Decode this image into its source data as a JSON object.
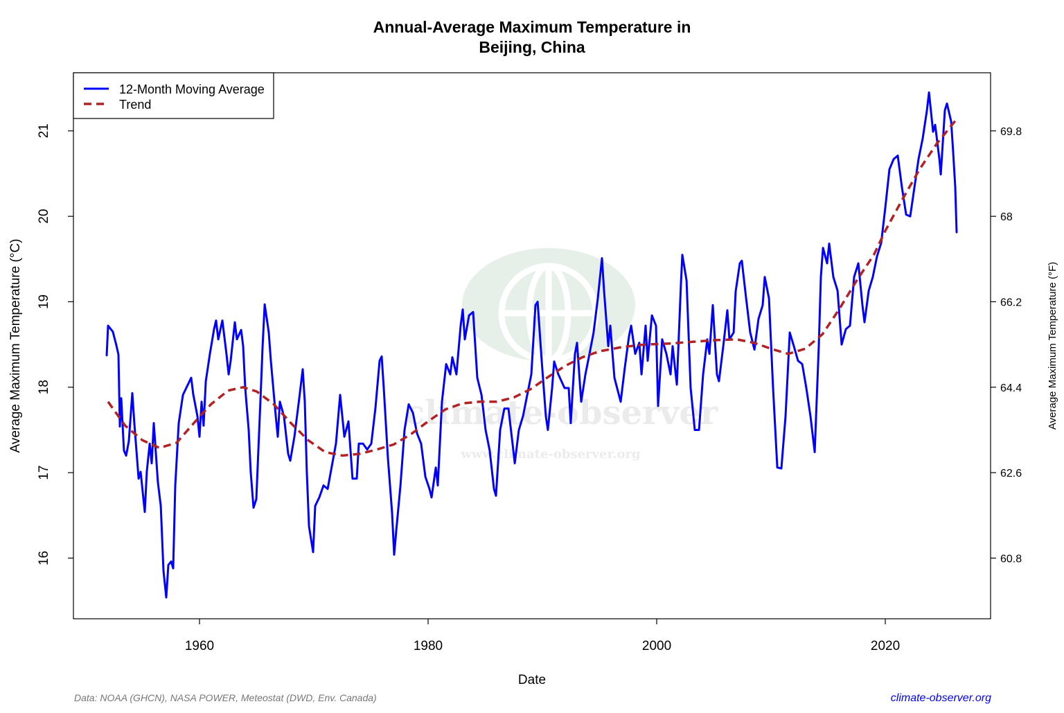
{
  "chart_data": {
    "type": "line",
    "title_line1": "Annual-Average Maximum Temperature in",
    "title_line2": "Beijing, China",
    "xlabel": "Date",
    "ylabel": "Average Maximum Temperature (°C)",
    "ylabel_right": "Average Maximum Temperature (°F)",
    "xlim": [
      1948.97,
      2029.21
    ],
    "ylim": [
      15.29,
      21.68
    ],
    "x_ticks": [
      1960,
      1980,
      2000,
      2020
    ],
    "y_ticks": [
      16,
      17,
      18,
      19,
      20,
      21
    ],
    "y_ticks_right": [
      "60.8",
      "62.6",
      "64.4",
      "66.2",
      "68",
      "69.8"
    ],
    "grid": false,
    "legend_position": "top-left",
    "series": [
      {
        "name": "12-Month Moving Average",
        "color": "#0000ff",
        "style": "solid",
        "x": [
          1951.88,
          1952.0,
          1952.42,
          1952.73,
          1952.91,
          1953.03,
          1953.15,
          1953.39,
          1953.58,
          1953.82,
          1954.12,
          1954.3,
          1954.67,
          1954.85,
          1955.21,
          1955.39,
          1955.64,
          1955.82,
          1956.0,
          1956.36,
          1956.61,
          1956.85,
          1957.09,
          1957.27,
          1957.52,
          1957.7,
          1957.88,
          1958.18,
          1958.55,
          1958.91,
          1959.27,
          1959.45,
          1959.82,
          1960.0,
          1960.18,
          1960.36,
          1960.55,
          1960.91,
          1961.27,
          1961.45,
          1961.64,
          1962.0,
          1962.36,
          1962.55,
          1962.73,
          1963.09,
          1963.27,
          1963.64,
          1963.82,
          1964.0,
          1964.3,
          1964.48,
          1964.73,
          1964.97,
          1965.33,
          1965.52,
          1965.7,
          1966.06,
          1966.24,
          1966.67,
          1966.85,
          1967.03,
          1967.39,
          1967.76,
          1967.94,
          1968.3,
          1968.73,
          1969.03,
          1969.21,
          1969.39,
          1969.58,
          1969.94,
          1970.12,
          1970.48,
          1970.85,
          1971.21,
          1971.58,
          1971.94,
          1972.3,
          1972.67,
          1973.03,
          1973.39,
          1973.76,
          1973.94,
          1974.3,
          1974.67,
          1975.03,
          1975.39,
          1975.76,
          1975.94,
          1976.12,
          1976.48,
          1976.85,
          1977.03,
          1977.21,
          1977.58,
          1977.94,
          1978.3,
          1978.67,
          1979.03,
          1979.39,
          1979.76,
          1980.12,
          1980.3,
          1980.67,
          1980.85,
          1981.21,
          1981.58,
          1981.94,
          1982.12,
          1982.48,
          1982.85,
          1983.03,
          1983.21,
          1983.58,
          1983.94,
          1984.3,
          1984.67,
          1985.03,
          1985.39,
          1985.76,
          1985.94,
          1986.3,
          1986.67,
          1987.03,
          1987.39,
          1987.58,
          1987.94,
          1988.3,
          1988.67,
          1989.03,
          1989.39,
          1989.58,
          1989.94,
          1990.3,
          1990.48,
          1990.85,
          1991.03,
          1991.39,
          1991.94,
          1992.3,
          1992.48,
          1992.85,
          1993.03,
          1993.39,
          1993.76,
          1994.12,
          1994.48,
          1994.85,
          1995.21,
          1995.39,
          1995.76,
          1995.94,
          1996.3,
          1996.85,
          1997.21,
          1997.58,
          1997.76,
          1998.12,
          1998.48,
          1998.67,
          1999.03,
          1999.21,
          1999.58,
          1999.94,
          2000.12,
          2000.48,
          2000.85,
          2001.21,
          2001.39,
          2001.76,
          2002.12,
          2002.24,
          2002.61,
          2002.97,
          2003.33,
          2003.7,
          2004.06,
          2004.42,
          2004.61,
          2004.91,
          2005.27,
          2005.45,
          2005.82,
          2006.18,
          2006.36,
          2006.73,
          2006.91,
          2007.27,
          2007.45,
          2007.82,
          2008.18,
          2008.55,
          2008.91,
          2009.27,
          2009.45,
          2009.82,
          2010.18,
          2010.55,
          2010.91,
          2011.27,
          2011.64,
          2012.0,
          2012.36,
          2012.73,
          2013.09,
          2013.45,
          2013.82,
          2014.18,
          2014.36,
          2014.55,
          2014.91,
          2015.09,
          2015.45,
          2015.82,
          2016.18,
          2016.55,
          2016.91,
          2017.27,
          2017.64,
          2018.0,
          2018.18,
          2018.55,
          2018.91,
          2019.27,
          2019.64,
          2020.0,
          2020.36,
          2020.73,
          2021.09,
          2021.45,
          2021.82,
          2022.18,
          2022.55,
          2022.91,
          2023.27,
          2023.64,
          2023.82,
          2024.18,
          2024.36,
          2024.73,
          2024.85,
          2025.21,
          2025.39,
          2025.76,
          2025.94,
          2026.12,
          2026.24
        ],
        "y": [
          18.37,
          18.72,
          18.65,
          18.49,
          18.38,
          17.54,
          17.87,
          17.26,
          17.2,
          17.37,
          17.93,
          17.58,
          16.93,
          17.01,
          16.54,
          17.01,
          17.34,
          17.11,
          17.58,
          16.89,
          16.61,
          15.85,
          15.54,
          15.92,
          15.96,
          15.88,
          16.85,
          17.58,
          17.91,
          18.01,
          18.11,
          17.92,
          17.66,
          17.42,
          17.83,
          17.55,
          18.07,
          18.39,
          18.68,
          18.78,
          18.56,
          18.78,
          18.39,
          18.15,
          18.31,
          18.76,
          18.56,
          18.67,
          18.48,
          17.99,
          17.5,
          17.01,
          16.59,
          16.69,
          17.83,
          18.48,
          18.97,
          18.64,
          18.31,
          17.66,
          17.42,
          17.83,
          17.66,
          17.22,
          17.14,
          17.42,
          17.87,
          18.21,
          17.83,
          17.01,
          16.37,
          16.07,
          16.61,
          16.71,
          16.85,
          16.81,
          17.08,
          17.34,
          17.91,
          17.42,
          17.6,
          16.93,
          16.93,
          17.34,
          17.34,
          17.27,
          17.34,
          17.75,
          18.31,
          18.36,
          17.99,
          17.18,
          16.53,
          16.04,
          16.32,
          16.85,
          17.5,
          17.8,
          17.7,
          17.46,
          17.34,
          16.95,
          16.81,
          16.71,
          17.06,
          16.85,
          17.83,
          18.27,
          18.15,
          18.35,
          18.15,
          18.72,
          18.91,
          18.56,
          18.84,
          18.88,
          18.11,
          17.91,
          17.5,
          17.26,
          16.81,
          16.73,
          17.5,
          17.75,
          17.75,
          17.34,
          17.11,
          17.5,
          17.66,
          17.91,
          18.15,
          18.96,
          19.0,
          18.31,
          17.66,
          17.5,
          17.99,
          18.3,
          18.15,
          17.99,
          17.99,
          17.58,
          18.39,
          18.52,
          17.83,
          18.15,
          18.39,
          18.64,
          19.04,
          19.51,
          19.13,
          18.48,
          18.72,
          18.11,
          17.83,
          18.23,
          18.6,
          18.72,
          18.39,
          18.52,
          18.15,
          18.72,
          18.31,
          18.84,
          18.72,
          17.78,
          18.56,
          18.39,
          18.15,
          18.48,
          18.03,
          19.21,
          19.55,
          19.25,
          17.99,
          17.5,
          17.5,
          18.15,
          18.56,
          18.39,
          18.96,
          18.15,
          18.07,
          18.48,
          18.9,
          18.56,
          18.64,
          19.12,
          19.45,
          19.48,
          19.04,
          18.64,
          18.44,
          18.8,
          18.96,
          19.29,
          19.04,
          17.99,
          17.06,
          17.05,
          17.66,
          18.64,
          18.48,
          18.31,
          18.27,
          17.99,
          17.66,
          17.24,
          18.48,
          19.29,
          19.63,
          19.45,
          19.68,
          19.29,
          19.13,
          18.5,
          18.68,
          18.72,
          19.29,
          19.45,
          18.96,
          18.76,
          19.13,
          19.29,
          19.53,
          19.69,
          20.1,
          20.55,
          20.67,
          20.71,
          20.34,
          20.02,
          20.0,
          20.34,
          20.67,
          20.91,
          21.24,
          21.45,
          20.99,
          21.07,
          20.67,
          20.49,
          21.24,
          21.32,
          21.11,
          20.75,
          20.34,
          19.81
        ]
      },
      {
        "name": "Trend",
        "color": "#b22222",
        "style": "dashed",
        "x": [
          1952.0,
          1953.5,
          1955.0,
          1956.5,
          1958.0,
          1959.5,
          1961.0,
          1962.5,
          1963.8,
          1965.0,
          1966.5,
          1968.0,
          1969.5,
          1971.0,
          1972.5,
          1974.0,
          1975.5,
          1977.0,
          1978.5,
          1980.0,
          1981.5,
          1983.0,
          1984.5,
          1986.0,
          1987.5,
          1989.0,
          1990.5,
          1992.0,
          1993.5,
          1995.0,
          1997.0,
          1999.0,
          2001.0,
          2003.0,
          2005.0,
          2007.0,
          2008.5,
          2010.0,
          2011.5,
          2013.0,
          2014.5,
          2016.0,
          2017.5,
          2019.0,
          2020.0,
          2021.5,
          2023.0,
          2024.5,
          2026.2
        ],
        "y": [
          17.83,
          17.55,
          17.38,
          17.29,
          17.35,
          17.58,
          17.8,
          17.96,
          18.0,
          17.95,
          17.8,
          17.58,
          17.38,
          17.24,
          17.2,
          17.22,
          17.27,
          17.33,
          17.45,
          17.6,
          17.74,
          17.81,
          17.83,
          17.83,
          17.88,
          17.98,
          18.12,
          18.25,
          18.35,
          18.42,
          18.47,
          18.5,
          18.51,
          18.53,
          18.55,
          18.56,
          18.52,
          18.45,
          18.39,
          18.45,
          18.62,
          18.92,
          19.25,
          19.55,
          19.83,
          20.2,
          20.55,
          20.85,
          21.13
        ]
      }
    ]
  },
  "footer": {
    "source": "Data: NOAA (GHCN), NASA POWER, Meteostat (DWD, Env. Canada)",
    "site": "climate-observer.org",
    "site_color": "#0000ff"
  },
  "watermark": {
    "brand": "climate-observer",
    "url": "www.climate-observer.org",
    "icon": "globe-icon",
    "color": "#e6efe8"
  }
}
